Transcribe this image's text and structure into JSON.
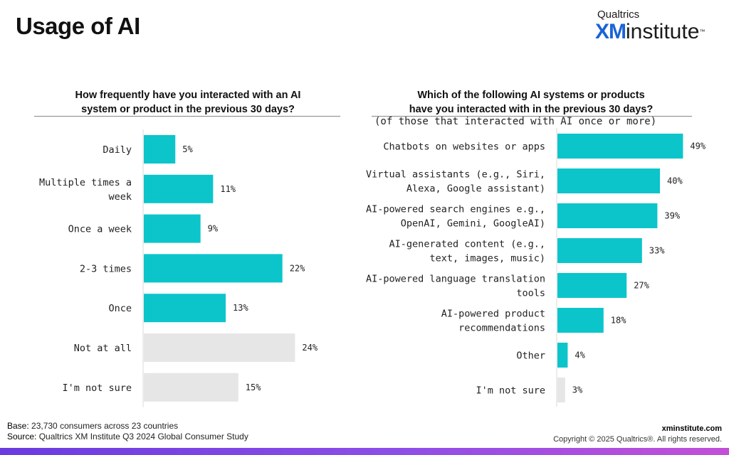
{
  "header": {
    "title": "Usage of AI",
    "logo_top": "Qualtrics",
    "logo_xm": "XM",
    "logo_rest": "institute",
    "logo_tm": "™"
  },
  "colors": {
    "primary": "#0bc5cb",
    "secondary": "#e6e6e6",
    "axis": "#d8d8d8"
  },
  "chart_data": [
    {
      "type": "bar",
      "orientation": "horizontal",
      "title_line1": "How frequently have you interacted with an AI",
      "title_line2": "system or product in the previous 30 days?",
      "categories": [
        "Daily",
        "Multiple times a|week",
        "Once a week",
        "2-3 times",
        "Once",
        "Not at all",
        "I'm not sure"
      ],
      "values": [
        5,
        11,
        9,
        22,
        13,
        24,
        15
      ],
      "labels": [
        "5%",
        "11%",
        "9%",
        "22%",
        "13%",
        "24%",
        "15%"
      ],
      "highlight": [
        true,
        true,
        true,
        true,
        true,
        false,
        false
      ],
      "unit": "%",
      "xlim": [
        0,
        100
      ]
    },
    {
      "type": "bar",
      "orientation": "horizontal",
      "title_line1": "Which of the following AI systems or products",
      "title_line2": "have you interacted with in the previous 30 days?",
      "subtitle": "(of those that interacted with AI once or more)",
      "categories": [
        "Chatbots on websites or apps",
        "Virtual assistants (e.g., Siri,|Alexa, Google assistant)",
        "AI-powered search engines e.g.,|OpenAI, Gemini, GoogleAI)",
        "AI-generated content (e.g.,|text, images, music)",
        "AI-powered language translation|tools",
        "AI-powered product|recommendations",
        "Other",
        "I'm not sure"
      ],
      "values": [
        49,
        40,
        39,
        33,
        27,
        18,
        4,
        3
      ],
      "labels": [
        "49%",
        "40%",
        "39%",
        "33%",
        "27%",
        "18%",
        "4%",
        "3%"
      ],
      "highlight": [
        true,
        true,
        true,
        true,
        true,
        true,
        true,
        false
      ],
      "unit": "%",
      "xlim": [
        0,
        100
      ]
    }
  ],
  "footer": {
    "base_label": "Base:",
    "base_text": "23,730 consumers across 23 countries",
    "source_label": "Source:",
    "source_text": "Qualtrics XM Institute Q3 2024 Global Consumer Study",
    "site": "xminstitute.com",
    "copyright": "Copyright © 2025 Qualtrics®. All rights reserved."
  }
}
